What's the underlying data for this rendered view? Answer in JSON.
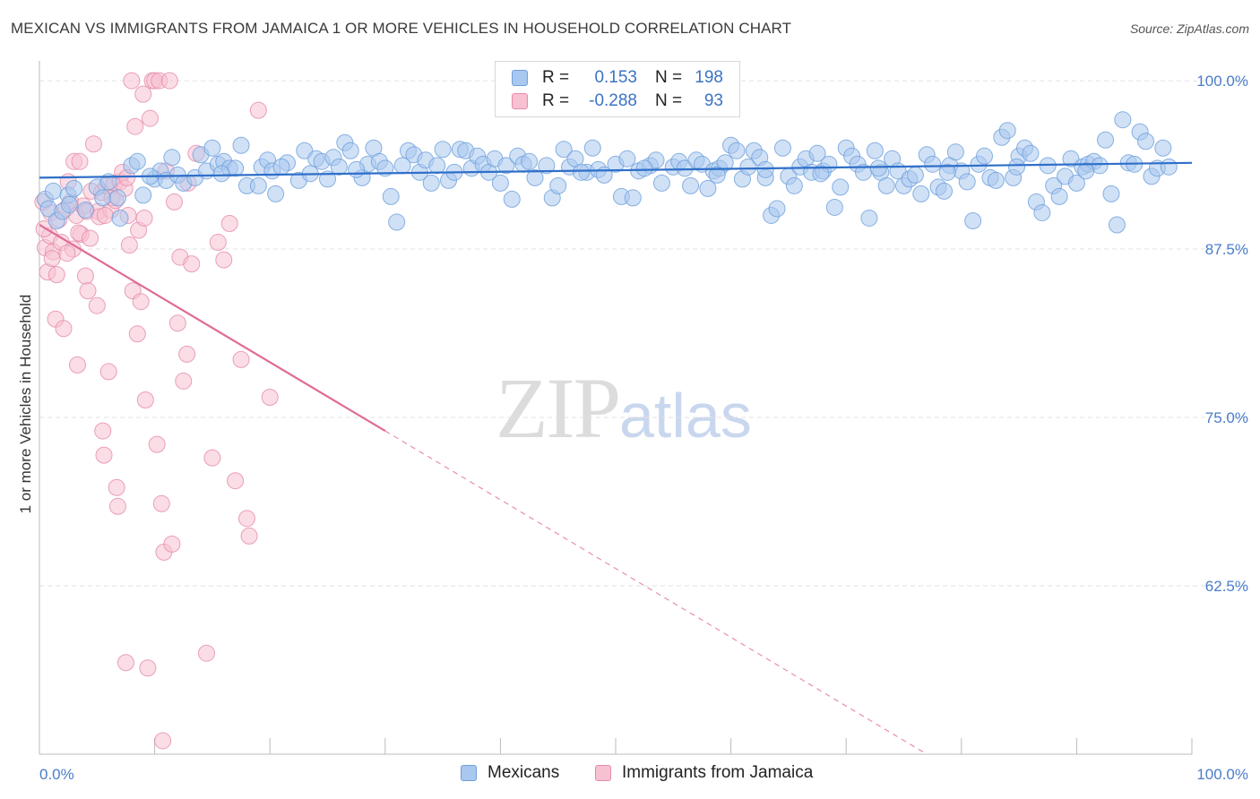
{
  "title": "MEXICAN VS IMMIGRANTS FROM JAMAICA 1 OR MORE VEHICLES IN HOUSEHOLD CORRELATION CHART",
  "source": "Source: ZipAtlas.com",
  "watermark": {
    "zip": "ZIP",
    "atlas": "atlas"
  },
  "legend": {
    "rows": [
      {
        "r_label": "R =",
        "r_value": "0.153",
        "n_label": "N =",
        "n_value": "198",
        "color": "#a9c8ef",
        "border": "#6d9fdc"
      },
      {
        "r_label": "R =",
        "r_value": "-0.288",
        "n_label": "N =",
        "n_value": "93",
        "color": "#f7c1d2",
        "border": "#e58aa9"
      }
    ]
  },
  "bottom_legend": [
    {
      "label": "Mexicans",
      "color": "#a9c8ef",
      "border": "#6d9fdc"
    },
    {
      "label": "Immigrants from Jamaica",
      "color": "#f7c1d2",
      "border": "#e58aa9"
    }
  ],
  "chart_data": {
    "type": "scatter",
    "title": "MEXICAN VS IMMIGRANTS FROM JAMAICA 1 OR MORE VEHICLES IN HOUSEHOLD CORRELATION CHART",
    "xlabel": "",
    "ylabel": "1 or more Vehicles in Household",
    "xlim": [
      0,
      100
    ],
    "ylim": [
      50,
      102
    ],
    "x_tick_labels": [
      "0.0%",
      "100.0%"
    ],
    "y_ticks": [
      62.5,
      75.0,
      87.5,
      100.0
    ],
    "y_tick_labels": [
      "62.5%",
      "75.0%",
      "87.5%",
      "100.0%"
    ],
    "grid": true,
    "legend_position": "top-center",
    "series": [
      {
        "name": "Mexicans",
        "color": "#6d9fdc",
        "fill": "#a9c8ef",
        "trend": {
          "x": [
            0,
            100
          ],
          "y": [
            92.8,
            93.9
          ]
        },
        "points": [
          [
            0.5,
            91.2
          ],
          [
            0.8,
            90.5
          ],
          [
            1.2,
            91.8
          ],
          [
            1.5,
            89.6
          ],
          [
            2.0,
            90.3
          ],
          [
            2.5,
            91.5
          ],
          [
            3.0,
            92.0
          ],
          [
            4.0,
            90.4
          ],
          [
            5.0,
            92.1
          ],
          [
            5.5,
            91.3
          ],
          [
            6.0,
            92.5
          ],
          [
            7.0,
            89.8
          ],
          [
            8.0,
            93.7
          ],
          [
            8.5,
            94.0
          ],
          [
            9.0,
            91.5
          ],
          [
            10.0,
            92.7
          ],
          [
            10.5,
            93.3
          ],
          [
            11.0,
            92.6
          ],
          [
            11.5,
            94.3
          ],
          [
            12.0,
            93.0
          ],
          [
            12.5,
            92.4
          ],
          [
            13.5,
            92.8
          ],
          [
            14.0,
            94.5
          ],
          [
            14.5,
            93.3
          ],
          [
            15.0,
            95.0
          ],
          [
            15.5,
            93.8
          ],
          [
            16.0,
            94.0
          ],
          [
            16.5,
            93.5
          ],
          [
            17.0,
            93.5
          ],
          [
            17.5,
            95.2
          ],
          [
            18.0,
            92.2
          ],
          [
            19.0,
            92.2
          ],
          [
            19.3,
            93.6
          ],
          [
            19.8,
            94.1
          ],
          [
            20.2,
            93.3
          ],
          [
            20.5,
            91.6
          ],
          [
            21.5,
            93.9
          ],
          [
            22.5,
            92.6
          ],
          [
            23.0,
            94.8
          ],
          [
            23.5,
            93.1
          ],
          [
            24.0,
            94.2
          ],
          [
            24.5,
            94.0
          ],
          [
            25.0,
            92.7
          ],
          [
            25.5,
            94.3
          ],
          [
            26.0,
            93.6
          ],
          [
            26.5,
            95.4
          ],
          [
            27.0,
            94.8
          ],
          [
            28.0,
            92.8
          ],
          [
            28.5,
            93.8
          ],
          [
            29.0,
            95.0
          ],
          [
            29.5,
            94.0
          ],
          [
            30.0,
            93.5
          ],
          [
            30.5,
            91.4
          ],
          [
            31.0,
            89.5
          ],
          [
            31.5,
            93.7
          ],
          [
            32.0,
            94.8
          ],
          [
            32.5,
            94.5
          ],
          [
            33.0,
            93.2
          ],
          [
            33.5,
            94.1
          ],
          [
            34.0,
            92.4
          ],
          [
            35.0,
            94.9
          ],
          [
            35.5,
            92.6
          ],
          [
            36.0,
            93.2
          ],
          [
            36.5,
            94.9
          ],
          [
            37.0,
            94.8
          ],
          [
            37.5,
            93.5
          ],
          [
            38.0,
            94.4
          ],
          [
            38.5,
            93.8
          ],
          [
            39.0,
            93.2
          ],
          [
            39.5,
            94.2
          ],
          [
            40.0,
            92.4
          ],
          [
            40.5,
            93.7
          ],
          [
            41.0,
            91.2
          ],
          [
            41.5,
            94.4
          ],
          [
            42.0,
            93.8
          ],
          [
            43.0,
            92.8
          ],
          [
            44.0,
            93.7
          ],
          [
            44.5,
            91.3
          ],
          [
            45.0,
            92.2
          ],
          [
            45.5,
            94.9
          ],
          [
            46.0,
            93.6
          ],
          [
            46.5,
            94.2
          ],
          [
            47.5,
            93.2
          ],
          [
            48.0,
            95.0
          ],
          [
            48.5,
            93.4
          ],
          [
            49.0,
            93.0
          ],
          [
            50.0,
            93.8
          ],
          [
            50.5,
            91.4
          ],
          [
            51.0,
            94.2
          ],
          [
            51.5,
            91.3
          ],
          [
            52.0,
            93.3
          ],
          [
            53.0,
            93.7
          ],
          [
            53.5,
            94.1
          ],
          [
            54.0,
            92.4
          ],
          [
            55.0,
            93.6
          ],
          [
            55.5,
            94.0
          ],
          [
            56.0,
            93.5
          ],
          [
            56.5,
            92.2
          ],
          [
            57.0,
            94.1
          ],
          [
            57.5,
            93.8
          ],
          [
            58.0,
            92.0
          ],
          [
            58.5,
            93.3
          ],
          [
            59.0,
            93.5
          ],
          [
            59.5,
            93.9
          ],
          [
            60.0,
            95.2
          ],
          [
            60.5,
            94.8
          ],
          [
            61.0,
            92.7
          ],
          [
            61.5,
            93.6
          ],
          [
            62.0,
            94.8
          ],
          [
            62.5,
            94.3
          ],
          [
            63.0,
            92.8
          ],
          [
            63.5,
            90.0
          ],
          [
            64.0,
            90.5
          ],
          [
            64.5,
            95.0
          ],
          [
            65.0,
            92.9
          ],
          [
            65.5,
            92.2
          ],
          [
            66.0,
            93.6
          ],
          [
            66.5,
            94.2
          ],
          [
            67.0,
            93.2
          ],
          [
            67.5,
            94.6
          ],
          [
            68.0,
            93.3
          ],
          [
            68.5,
            93.8
          ],
          [
            69.0,
            90.6
          ],
          [
            69.5,
            92.1
          ],
          [
            70.0,
            95.0
          ],
          [
            70.5,
            94.4
          ],
          [
            71.0,
            93.8
          ],
          [
            71.5,
            93.2
          ],
          [
            72.0,
            89.8
          ],
          [
            72.5,
            94.8
          ],
          [
            73.0,
            93.2
          ],
          [
            73.5,
            92.2
          ],
          [
            74.0,
            94.2
          ],
          [
            74.5,
            93.3
          ],
          [
            75.0,
            92.2
          ],
          [
            75.5,
            92.7
          ],
          [
            76.0,
            93.0
          ],
          [
            76.5,
            91.6
          ],
          [
            77.0,
            94.5
          ],
          [
            77.5,
            93.8
          ],
          [
            78.0,
            92.1
          ],
          [
            78.5,
            91.8
          ],
          [
            79.0,
            93.7
          ],
          [
            79.5,
            94.7
          ],
          [
            80.0,
            93.3
          ],
          [
            80.5,
            92.5
          ],
          [
            81.0,
            89.6
          ],
          [
            81.5,
            93.8
          ],
          [
            82.0,
            94.4
          ],
          [
            82.5,
            92.8
          ],
          [
            83.0,
            92.6
          ],
          [
            83.5,
            95.8
          ],
          [
            84.0,
            96.3
          ],
          [
            84.5,
            92.8
          ],
          [
            85.0,
            94.4
          ],
          [
            85.5,
            95.0
          ],
          [
            86.0,
            94.6
          ],
          [
            86.5,
            91.0
          ],
          [
            87.0,
            90.2
          ],
          [
            87.5,
            93.7
          ],
          [
            88.0,
            92.2
          ],
          [
            88.5,
            91.4
          ],
          [
            89.0,
            92.9
          ],
          [
            89.5,
            94.2
          ],
          [
            90.0,
            92.4
          ],
          [
            90.5,
            93.6
          ],
          [
            91.0,
            93.8
          ],
          [
            91.5,
            94.0
          ],
          [
            92.0,
            93.7
          ],
          [
            92.5,
            95.6
          ],
          [
            93.0,
            91.6
          ],
          [
            93.5,
            89.3
          ],
          [
            94.0,
            97.1
          ],
          [
            94.5,
            93.9
          ],
          [
            95.0,
            93.8
          ],
          [
            95.5,
            96.2
          ],
          [
            96.0,
            95.5
          ],
          [
            96.5,
            92.9
          ],
          [
            97.0,
            93.5
          ],
          [
            97.5,
            95.0
          ],
          [
            98.0,
            93.6
          ],
          [
            2.6,
            90.8
          ],
          [
            6.8,
            91.3
          ],
          [
            9.6,
            92.9
          ],
          [
            15.8,
            93.1
          ],
          [
            21.0,
            93.6
          ],
          [
            27.5,
            93.4
          ],
          [
            34.5,
            93.7
          ],
          [
            42.5,
            94.0
          ],
          [
            47.0,
            93.2
          ],
          [
            52.5,
            93.5
          ],
          [
            58.8,
            93.0
          ],
          [
            63.0,
            93.4
          ],
          [
            67.8,
            93.1
          ],
          [
            72.8,
            93.5
          ],
          [
            78.8,
            93.2
          ],
          [
            84.8,
            93.6
          ],
          [
            90.8,
            93.3
          ]
        ]
      },
      {
        "name": "Immigrants from Jamaica",
        "color": "#e58aa9",
        "fill": "#f7c1d2",
        "trend": {
          "x": [
            0,
            30
          ],
          "y": [
            89.3,
            74.0
          ]
        },
        "trend_extension": {
          "x": [
            30,
            77
          ],
          "y": [
            74.0,
            50.0
          ]
        },
        "points": [
          [
            0.3,
            91.0
          ],
          [
            0.5,
            87.6
          ],
          [
            0.7,
            85.8
          ],
          [
            0.9,
            88.5
          ],
          [
            1.0,
            90.2
          ],
          [
            1.2,
            87.3
          ],
          [
            1.4,
            82.3
          ],
          [
            1.5,
            85.6
          ],
          [
            1.7,
            89.7
          ],
          [
            1.9,
            88.0
          ],
          [
            2.1,
            81.6
          ],
          [
            2.3,
            90.5
          ],
          [
            2.5,
            92.5
          ],
          [
            2.7,
            91.0
          ],
          [
            2.9,
            87.5
          ],
          [
            3.0,
            94.0
          ],
          [
            3.2,
            90.0
          ],
          [
            3.3,
            78.9
          ],
          [
            3.5,
            94.0
          ],
          [
            3.6,
            88.6
          ],
          [
            3.8,
            90.7
          ],
          [
            4.0,
            85.5
          ],
          [
            4.1,
            90.3
          ],
          [
            4.2,
            84.4
          ],
          [
            4.5,
            91.8
          ],
          [
            4.7,
            95.3
          ],
          [
            5.0,
            83.3
          ],
          [
            5.1,
            90.3
          ],
          [
            5.2,
            89.9
          ],
          [
            5.4,
            91.7
          ],
          [
            5.5,
            74.0
          ],
          [
            5.6,
            72.2
          ],
          [
            5.8,
            92.2
          ],
          [
            6.0,
            78.4
          ],
          [
            6.2,
            90.4
          ],
          [
            6.3,
            91.3
          ],
          [
            6.5,
            92.4
          ],
          [
            6.7,
            69.8
          ],
          [
            6.8,
            68.4
          ],
          [
            7.0,
            92.5
          ],
          [
            7.2,
            93.2
          ],
          [
            7.4,
            92.0
          ],
          [
            7.5,
            56.8
          ],
          [
            7.7,
            90.0
          ],
          [
            7.8,
            87.8
          ],
          [
            8.0,
            100.0
          ],
          [
            8.1,
            84.4
          ],
          [
            8.3,
            96.6
          ],
          [
            8.5,
            81.2
          ],
          [
            8.6,
            88.9
          ],
          [
            8.8,
            83.6
          ],
          [
            9.0,
            99.0
          ],
          [
            9.2,
            76.3
          ],
          [
            9.4,
            56.4
          ],
          [
            9.6,
            97.2
          ],
          [
            9.8,
            100.0
          ],
          [
            10.0,
            100.0
          ],
          [
            10.2,
            73.0
          ],
          [
            10.4,
            100.0
          ],
          [
            10.6,
            68.6
          ],
          [
            10.8,
            65.0
          ],
          [
            11.0,
            93.3
          ],
          [
            11.3,
            100.0
          ],
          [
            11.5,
            65.6
          ],
          [
            12.0,
            82.0
          ],
          [
            12.2,
            86.9
          ],
          [
            12.5,
            77.7
          ],
          [
            12.8,
            79.7
          ],
          [
            13.2,
            86.4
          ],
          [
            13.6,
            94.6
          ],
          [
            14.5,
            57.5
          ],
          [
            15.0,
            72.0
          ],
          [
            15.5,
            88.0
          ],
          [
            16.0,
            86.7
          ],
          [
            16.5,
            89.4
          ],
          [
            17.0,
            70.3
          ],
          [
            17.5,
            79.3
          ],
          [
            18.0,
            67.5
          ],
          [
            18.2,
            66.2
          ],
          [
            19.0,
            97.8
          ],
          [
            20.0,
            76.5
          ],
          [
            0.4,
            89.0
          ],
          [
            1.1,
            86.8
          ],
          [
            2.4,
            87.2
          ],
          [
            3.4,
            88.7
          ],
          [
            4.4,
            88.3
          ],
          [
            5.7,
            90.0
          ],
          [
            6.6,
            91.1
          ],
          [
            7.6,
            92.8
          ],
          [
            9.1,
            89.8
          ],
          [
            11.7,
            91.0
          ],
          [
            12.9,
            92.4
          ],
          [
            10.7,
            51.0
          ]
        ]
      }
    ]
  }
}
